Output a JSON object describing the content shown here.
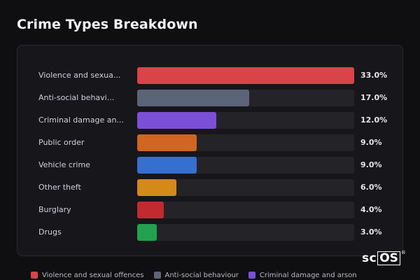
{
  "title": "Crime Types Breakdown",
  "logo": {
    "text_sc": "sc",
    "text_os": "OS",
    "mark": "®"
  },
  "chart_data": {
    "type": "bar",
    "orientation": "horizontal",
    "title": "Crime Types Breakdown",
    "value_format": "percent",
    "xlim": [
      0,
      33
    ],
    "categories": [
      "Violence and sexua...",
      "Anti-social behavi...",
      "Criminal damage an...",
      "Public order",
      "Vehicle crime",
      "Other theft",
      "Burglary",
      "Drugs"
    ],
    "values": [
      33.0,
      17.0,
      12.0,
      9.0,
      9.0,
      6.0,
      4.0,
      3.0
    ],
    "value_labels": [
      "33.0%",
      "17.0%",
      "12.0%",
      "9.0%",
      "9.0%",
      "6.0%",
      "4.0%",
      "3.0%"
    ],
    "colors": [
      "#d94448",
      "#5b6577",
      "#7b4fd6",
      "#d2651f",
      "#3570d0",
      "#d28b19",
      "#c12a2f",
      "#22a24f"
    ],
    "legend": [
      {
        "label": "Violence and sexual offences",
        "color": "#d94448"
      },
      {
        "label": "Anti-social behaviour",
        "color": "#5b6577"
      },
      {
        "label": "Criminal damage and arson",
        "color": "#7b4fd6"
      }
    ],
    "legend_position": "bottom"
  }
}
